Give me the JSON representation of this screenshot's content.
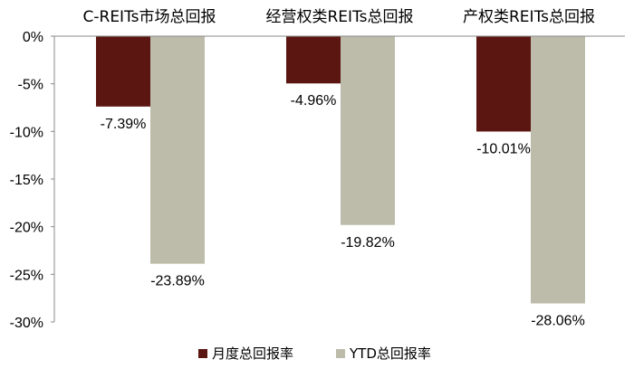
{
  "chart_data": {
    "type": "bar",
    "categories": [
      "C-REITs市场总回报",
      "经营权类REITs总回报",
      "产权类REITs总回报"
    ],
    "series": [
      {
        "name": "月度总回报率",
        "values": [
          -7.39,
          -4.96,
          -10.01
        ],
        "labels": [
          "-7.39%",
          "-4.96%",
          "-10.01%"
        ],
        "color": "#5b1612"
      },
      {
        "name": "YTD总回报率",
        "values": [
          -23.89,
          -19.82,
          -28.06
        ],
        "labels": [
          "-23.89%",
          "-19.82%",
          "-28.06%"
        ],
        "color": "#bdbcab"
      }
    ],
    "ylim": [
      -30,
      0
    ],
    "yticks": [
      0,
      -5,
      -10,
      -15,
      -20,
      -25,
      -30
    ],
    "ytick_labels": [
      "0%",
      "-5%",
      "-10%",
      "-15%",
      "-20%",
      "-25%",
      "-30%"
    ],
    "grid": false,
    "legend_position": "bottom"
  }
}
